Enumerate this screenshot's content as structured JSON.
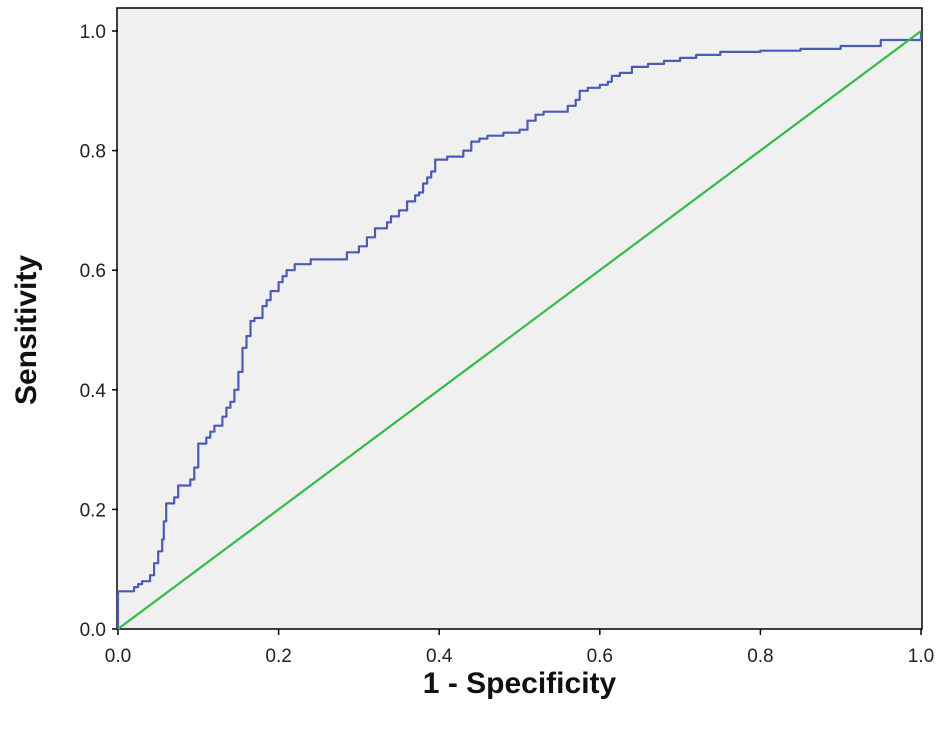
{
  "chart_data": {
    "type": "line",
    "title": "",
    "xlabel": "1 - Specificity",
    "ylabel": "Sensitivity",
    "xlim": [
      0.0,
      1.0
    ],
    "ylim": [
      0.0,
      1.0
    ],
    "x_ticks": [
      "0.0",
      "0.2",
      "0.4",
      "0.6",
      "0.8",
      "1.0"
    ],
    "y_ticks": [
      "0.0",
      "0.2",
      "0.4",
      "0.6",
      "0.8",
      "1.0"
    ],
    "grid": false,
    "legend": "none",
    "background_color": "#f0f0f0",
    "series": [
      {
        "color": "#4a5cb8",
        "style": "step",
        "x": [
          0.0,
          0.0,
          0.02,
          0.025,
          0.03,
          0.04,
          0.045,
          0.05,
          0.055,
          0.057,
          0.06,
          0.07,
          0.075,
          0.09,
          0.095,
          0.1,
          0.11,
          0.115,
          0.12,
          0.13,
          0.135,
          0.14,
          0.145,
          0.15,
          0.155,
          0.16,
          0.165,
          0.17,
          0.18,
          0.185,
          0.19,
          0.2,
          0.205,
          0.21,
          0.22,
          0.24,
          0.265,
          0.285,
          0.3,
          0.31,
          0.32,
          0.335,
          0.34,
          0.35,
          0.36,
          0.37,
          0.375,
          0.38,
          0.385,
          0.39,
          0.395,
          0.41,
          0.43,
          0.44,
          0.45,
          0.46,
          0.48,
          0.5,
          0.51,
          0.52,
          0.53,
          0.56,
          0.57,
          0.575,
          0.585,
          0.6,
          0.61,
          0.615,
          0.625,
          0.64,
          0.66,
          0.68,
          0.7,
          0.72,
          0.75,
          0.8,
          0.85,
          0.9,
          0.95,
          1.0
        ],
        "y": [
          0.0,
          0.063,
          0.07,
          0.075,
          0.08,
          0.09,
          0.11,
          0.13,
          0.15,
          0.18,
          0.21,
          0.22,
          0.24,
          0.25,
          0.27,
          0.31,
          0.32,
          0.33,
          0.34,
          0.355,
          0.37,
          0.38,
          0.4,
          0.43,
          0.47,
          0.49,
          0.515,
          0.52,
          0.54,
          0.55,
          0.565,
          0.58,
          0.59,
          0.6,
          0.61,
          0.618,
          0.618,
          0.63,
          0.64,
          0.655,
          0.67,
          0.68,
          0.69,
          0.7,
          0.715,
          0.725,
          0.73,
          0.745,
          0.755,
          0.765,
          0.785,
          0.79,
          0.8,
          0.815,
          0.82,
          0.825,
          0.83,
          0.835,
          0.85,
          0.86,
          0.865,
          0.875,
          0.885,
          0.9,
          0.905,
          0.91,
          0.915,
          0.925,
          0.93,
          0.94,
          0.945,
          0.95,
          0.955,
          0.96,
          0.965,
          0.967,
          0.97,
          0.975,
          0.985,
          1.0
        ]
      },
      {
        "color": "#33bb44",
        "style": "line",
        "x": [
          0.0,
          1.0
        ],
        "y": [
          0.0,
          1.0
        ]
      }
    ]
  }
}
